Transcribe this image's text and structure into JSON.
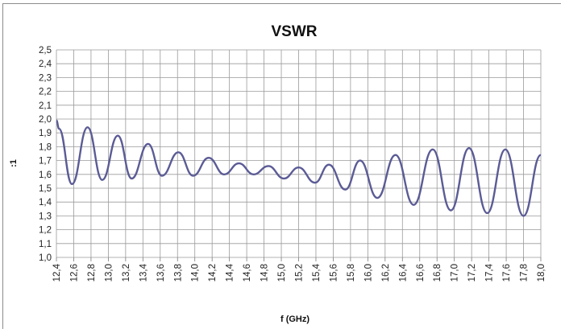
{
  "chart_data": {
    "type": "line",
    "title": "VSWR",
    "xlabel": "f (GHz)",
    "ylabel": ":1",
    "xlim": [
      12.4,
      18.0
    ],
    "ylim": [
      1.0,
      2.5
    ],
    "grid": true,
    "legend": "none",
    "line_color": "#5b5b96",
    "x_ticks": [
      "12,4",
      "12,6",
      "12,8",
      "13,0",
      "13,2",
      "13,4",
      "13,6",
      "13,8",
      "14,0",
      "14,2",
      "14,4",
      "14,6",
      "14,8",
      "15,0",
      "15,2",
      "15,4",
      "15,6",
      "15,8",
      "16,0",
      "16,2",
      "16,4",
      "16,6",
      "16,8",
      "17,0",
      "17,2",
      "17,4",
      "17,6",
      "17,8",
      "18,0"
    ],
    "y_ticks": [
      "1,0",
      "1,1",
      "1,2",
      "1,3",
      "1,4",
      "1,5",
      "1,6",
      "1,7",
      "1,8",
      "1,9",
      "2,0",
      "2,1",
      "2,2",
      "2,3",
      "2,4",
      "2,5"
    ],
    "series": [
      {
        "x": [
          12.4,
          12.43,
          12.58,
          12.76,
          12.93,
          13.11,
          13.27,
          13.46,
          13.62,
          13.81,
          13.98,
          14.16,
          14.34,
          14.51,
          14.68,
          14.85,
          15.03,
          15.2,
          15.39,
          15.55,
          15.74,
          15.91,
          16.11,
          16.32,
          16.53,
          16.75,
          16.96,
          17.17,
          17.38,
          17.59,
          17.8,
          18.0
        ],
        "y": [
          1.99,
          1.93,
          1.53,
          1.94,
          1.56,
          1.88,
          1.57,
          1.82,
          1.59,
          1.76,
          1.59,
          1.72,
          1.6,
          1.68,
          1.6,
          1.66,
          1.57,
          1.65,
          1.54,
          1.67,
          1.49,
          1.7,
          1.43,
          1.74,
          1.38,
          1.78,
          1.34,
          1.79,
          1.32,
          1.78,
          1.3,
          1.74
        ]
      }
    ]
  }
}
